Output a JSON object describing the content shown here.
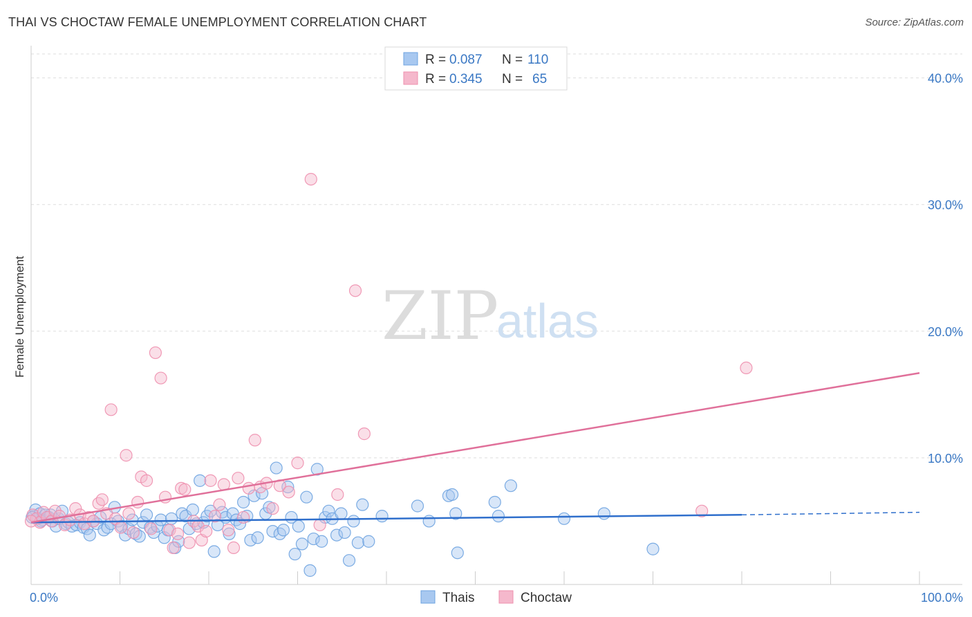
{
  "header": {
    "title": "THAI VS CHOCTAW FEMALE UNEMPLOYMENT CORRELATION CHART",
    "source": "Source: ZipAtlas.com"
  },
  "watermark": {
    "zip": "ZIP",
    "atlas": "atlas"
  },
  "legend": {
    "rows": [
      {
        "r_label": "R = ",
        "r_value": "0.087",
        "n_label": "N = ",
        "n_value": "110",
        "color": "#a8c8f0"
      },
      {
        "r_label": "R = ",
        "r_value": "0.345",
        "n_label": "N = ",
        "n_value": "65",
        "color": "#f5b8cc"
      }
    ]
  },
  "bottom_legend": [
    {
      "label": "Thais",
      "color": "#a8c8f0"
    },
    {
      "label": "Choctaw",
      "color": "#f5b8cc"
    }
  ],
  "chart_data": {
    "type": "scatter",
    "ylabel": "Female Unemployment",
    "xlim": [
      0,
      100
    ],
    "ylim": [
      0,
      42
    ],
    "x_tick_labels": [
      "0.0%",
      "100.0%"
    ],
    "y_ticks": [
      10,
      20,
      30,
      40
    ],
    "y_tick_labels": [
      "10.0%",
      "20.0%",
      "30.0%",
      "40.0%"
    ],
    "grid": true,
    "legend_position": "top-center",
    "series": [
      {
        "name": "Thais",
        "color": "#6ea3e0",
        "fill": "#a8c8f0",
        "trend": {
          "x": [
            0,
            80,
            100
          ],
          "y": [
            4.9,
            5.5,
            5.7
          ],
          "solid_until": 80,
          "color": "#2f6fcc"
        },
        "points": [
          [
            0.3,
            5.4
          ],
          [
            0.5,
            5.9
          ],
          [
            0.8,
            5.2
          ],
          [
            1.0,
            5.6
          ],
          [
            1.3,
            5.1
          ],
          [
            1.6,
            5.5
          ],
          [
            2.0,
            5.3
          ],
          [
            2.4,
            5.0
          ],
          [
            2.8,
            4.6
          ],
          [
            3.1,
            5.2
          ],
          [
            3.5,
            5.8
          ],
          [
            3.9,
            4.8
          ],
          [
            4.2,
            4.9
          ],
          [
            4.6,
            4.6
          ],
          [
            5.1,
            4.7
          ],
          [
            5.5,
            4.9
          ],
          [
            5.9,
            4.5
          ],
          [
            6.3,
            4.4
          ],
          [
            6.6,
            3.9
          ],
          [
            7.0,
            5.0
          ],
          [
            7.4,
            4.8
          ],
          [
            7.8,
            5.3
          ],
          [
            8.2,
            4.3
          ],
          [
            8.6,
            4.5
          ],
          [
            9.0,
            4.8
          ],
          [
            9.4,
            6.1
          ],
          [
            9.8,
            5.0
          ],
          [
            10.2,
            4.6
          ],
          [
            10.6,
            3.9
          ],
          [
            11.0,
            4.4
          ],
          [
            11.4,
            5.1
          ],
          [
            11.8,
            4.0
          ],
          [
            12.2,
            3.8
          ],
          [
            12.6,
            4.9
          ],
          [
            13.0,
            5.5
          ],
          [
            13.4,
            4.5
          ],
          [
            13.8,
            4.1
          ],
          [
            14.2,
            4.6
          ],
          [
            14.6,
            5.1
          ],
          [
            15.0,
            3.7
          ],
          [
            15.4,
            4.3
          ],
          [
            15.8,
            5.2
          ],
          [
            16.2,
            2.9
          ],
          [
            16.6,
            3.4
          ],
          [
            17.0,
            5.6
          ],
          [
            17.4,
            5.4
          ],
          [
            17.8,
            4.4
          ],
          [
            18.2,
            5.9
          ],
          [
            18.6,
            4.8
          ],
          [
            19.0,
            8.2
          ],
          [
            19.4,
            4.9
          ],
          [
            19.8,
            5.4
          ],
          [
            20.2,
            5.8
          ],
          [
            20.6,
            2.6
          ],
          [
            21.0,
            4.7
          ],
          [
            21.5,
            5.7
          ],
          [
            21.9,
            5.3
          ],
          [
            22.3,
            4.0
          ],
          [
            22.7,
            5.6
          ],
          [
            23.1,
            5.1
          ],
          [
            23.5,
            4.8
          ],
          [
            23.9,
            6.5
          ],
          [
            24.3,
            5.4
          ],
          [
            24.7,
            3.5
          ],
          [
            25.1,
            7.0
          ],
          [
            25.5,
            3.7
          ],
          [
            26.0,
            7.2
          ],
          [
            26.4,
            5.6
          ],
          [
            26.8,
            6.1
          ],
          [
            27.2,
            4.2
          ],
          [
            27.6,
            9.2
          ],
          [
            28.0,
            4.0
          ],
          [
            28.4,
            4.3
          ],
          [
            28.9,
            7.7
          ],
          [
            29.3,
            5.3
          ],
          [
            29.7,
            2.4
          ],
          [
            30.1,
            4.6
          ],
          [
            30.5,
            3.2
          ],
          [
            31.0,
            6.9
          ],
          [
            31.4,
            1.1
          ],
          [
            31.8,
            3.6
          ],
          [
            32.2,
            9.1
          ],
          [
            32.7,
            3.4
          ],
          [
            33.1,
            5.3
          ],
          [
            33.5,
            5.8
          ],
          [
            33.9,
            5.2
          ],
          [
            34.4,
            3.9
          ],
          [
            34.9,
            5.6
          ],
          [
            35.3,
            4.1
          ],
          [
            35.8,
            1.9
          ],
          [
            36.3,
            5.0
          ],
          [
            36.8,
            3.3
          ],
          [
            37.3,
            6.3
          ],
          [
            38.0,
            3.4
          ],
          [
            39.5,
            5.4
          ],
          [
            43.5,
            6.2
          ],
          [
            44.8,
            5.0
          ],
          [
            47.0,
            7.0
          ],
          [
            47.4,
            7.1
          ],
          [
            47.8,
            5.6
          ],
          [
            48.0,
            2.5
          ],
          [
            52.2,
            6.5
          ],
          [
            52.6,
            5.4
          ],
          [
            54.0,
            7.8
          ],
          [
            60.0,
            5.2
          ],
          [
            64.5,
            5.6
          ],
          [
            70.0,
            2.8
          ],
          [
            0.1,
            5.3
          ],
          [
            1.1,
            5.0
          ],
          [
            2.2,
            5.5
          ]
        ]
      },
      {
        "name": "Choctaw",
        "color": "#ee8fae",
        "fill": "#f5b8cc",
        "trend": {
          "x": [
            0,
            100
          ],
          "y": [
            4.9,
            16.7
          ],
          "solid_until": 100,
          "color": "#e0709a"
        },
        "points": [
          [
            0.2,
            5.5
          ],
          [
            0.6,
            5.2
          ],
          [
            1.0,
            4.9
          ],
          [
            1.4,
            5.7
          ],
          [
            1.8,
            5.3
          ],
          [
            2.3,
            5.0
          ],
          [
            2.7,
            5.8
          ],
          [
            3.2,
            5.4
          ],
          [
            3.8,
            4.7
          ],
          [
            4.4,
            5.1
          ],
          [
            5.0,
            6.0
          ],
          [
            5.5,
            5.5
          ],
          [
            6.0,
            4.8
          ],
          [
            6.5,
            5.3
          ],
          [
            7.0,
            5.0
          ],
          [
            7.6,
            6.4
          ],
          [
            8.0,
            6.7
          ],
          [
            8.5,
            5.6
          ],
          [
            9.0,
            13.8
          ],
          [
            9.5,
            5.2
          ],
          [
            10.1,
            4.5
          ],
          [
            10.7,
            10.2
          ],
          [
            11.0,
            5.6
          ],
          [
            11.5,
            4.1
          ],
          [
            12.0,
            6.5
          ],
          [
            12.4,
            8.5
          ],
          [
            13.0,
            8.2
          ],
          [
            13.5,
            4.4
          ],
          [
            14.0,
            18.3
          ],
          [
            14.6,
            16.3
          ],
          [
            15.1,
            6.9
          ],
          [
            15.6,
            4.3
          ],
          [
            16.0,
            2.9
          ],
          [
            16.5,
            4.0
          ],
          [
            16.9,
            7.6
          ],
          [
            17.3,
            7.5
          ],
          [
            17.8,
            3.3
          ],
          [
            18.3,
            5.0
          ],
          [
            18.8,
            4.6
          ],
          [
            19.2,
            3.5
          ],
          [
            19.7,
            4.2
          ],
          [
            20.2,
            8.2
          ],
          [
            20.7,
            5.4
          ],
          [
            21.2,
            6.3
          ],
          [
            21.7,
            7.9
          ],
          [
            22.2,
            4.3
          ],
          [
            22.8,
            2.9
          ],
          [
            23.3,
            8.4
          ],
          [
            23.9,
            5.3
          ],
          [
            24.5,
            7.6
          ],
          [
            25.2,
            11.4
          ],
          [
            25.8,
            7.7
          ],
          [
            26.5,
            8.0
          ],
          [
            27.2,
            6.0
          ],
          [
            28.0,
            7.8
          ],
          [
            29.0,
            7.3
          ],
          [
            30.0,
            9.6
          ],
          [
            31.5,
            32.0
          ],
          [
            32.5,
            4.7
          ],
          [
            34.5,
            7.1
          ],
          [
            36.5,
            23.2
          ],
          [
            37.5,
            11.9
          ],
          [
            75.5,
            5.8
          ],
          [
            80.5,
            17.1
          ],
          [
            0.0,
            5.0
          ]
        ]
      }
    ]
  }
}
